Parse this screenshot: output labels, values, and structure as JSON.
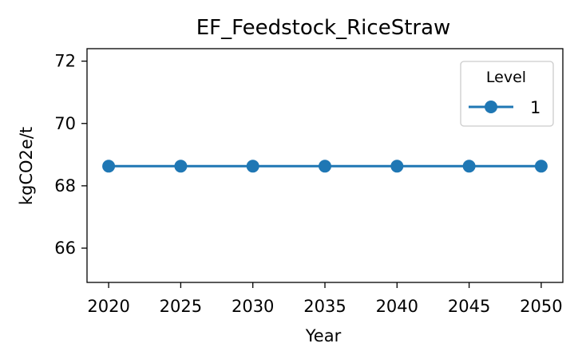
{
  "chart_data": {
    "type": "line",
    "title": "EF_Feedstock_RiceStraw",
    "xlabel": "Year",
    "ylabel": "kgCO2e/t",
    "x": [
      2020,
      2025,
      2030,
      2035,
      2040,
      2045,
      2050
    ],
    "x_ticks": [
      "2020",
      "2025",
      "2030",
      "2035",
      "2040",
      "2045",
      "2050"
    ],
    "y_ticks": [
      "66",
      "68",
      "70",
      "72"
    ],
    "xlim": [
      2018.5,
      2051.5
    ],
    "ylim": [
      64.9,
      72.4
    ],
    "grid": false,
    "legend": {
      "title": "Level",
      "placement": "upper right"
    },
    "series": [
      {
        "name": "1",
        "color": "#1f77b4",
        "marker": "circle",
        "values": [
          68.63,
          68.63,
          68.63,
          68.63,
          68.63,
          68.63,
          68.63
        ]
      }
    ]
  }
}
